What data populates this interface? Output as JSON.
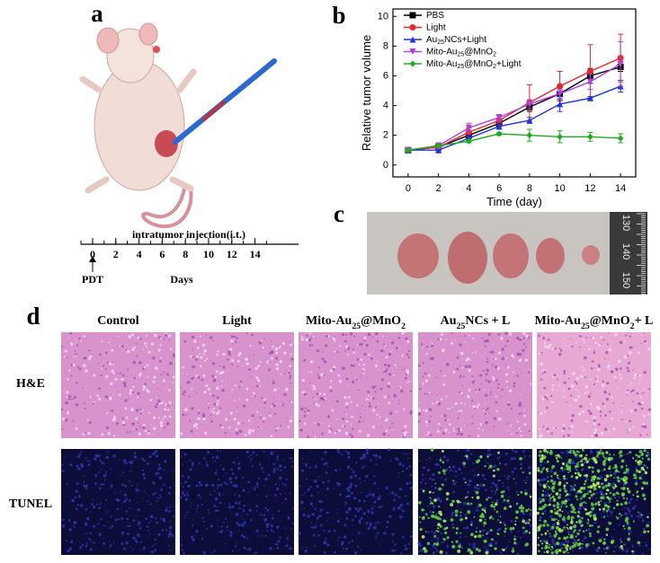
{
  "panel_labels": [
    "a",
    "b",
    "c",
    "d"
  ],
  "panel_a": {
    "annotation": "intratumor injection(i.t.)",
    "timeline_ticks": [
      0,
      2,
      4,
      6,
      8,
      10,
      12,
      14
    ],
    "start_label": "PDT",
    "axis_label": "Days"
  },
  "chart_data": {
    "type": "line",
    "xlabel": "Time (day)",
    "ylabel": "Relative tumor volume",
    "x": [
      0,
      2,
      4,
      6,
      8,
      10,
      12,
      14
    ],
    "xlim": [
      -1,
      15
    ],
    "xticks": [
      0,
      2,
      4,
      6,
      8,
      10,
      12,
      14
    ],
    "ylim": [
      -0.8,
      10.5
    ],
    "yticks": [
      0,
      2,
      4,
      6,
      8,
      10
    ],
    "legend": "upper left",
    "series": [
      {
        "name": "PBS",
        "color": "#000000",
        "marker": "square",
        "values": [
          1.0,
          1.2,
          2.0,
          2.8,
          3.9,
          4.8,
          6.0,
          6.6
        ],
        "errors": [
          0.1,
          0.2,
          0.2,
          0.2,
          0.3,
          0.4,
          0.5,
          0.3
        ]
      },
      {
        "name": "Light",
        "color": "#e8262a",
        "marker": "circle",
        "values": [
          1.0,
          1.2,
          2.2,
          3.0,
          4.2,
          5.3,
          6.3,
          7.2
        ],
        "errors": [
          0.1,
          0.2,
          0.3,
          0.3,
          1.2,
          1.0,
          1.8,
          1.6
        ]
      },
      {
        "name": "Au25NCs+Light",
        "color": "#2233dd",
        "marker": "triangle",
        "values": [
          1.0,
          1.0,
          1.8,
          2.6,
          3.0,
          4.1,
          4.5,
          5.3
        ],
        "errors": [
          0.1,
          0.1,
          0.2,
          0.2,
          0.2,
          0.5,
          0.1,
          0.4
        ]
      },
      {
        "name": "Mito-Au25@MnO2",
        "color": "#b040e0",
        "marker": "triangle-down",
        "values": [
          1.0,
          1.3,
          2.5,
          3.2,
          4.1,
          4.8,
          5.6,
          6.8
        ],
        "errors": [
          0.1,
          0.2,
          0.3,
          0.2,
          0.3,
          0.3,
          0.5,
          1.5
        ]
      },
      {
        "name": "Mito-Au25@MnO2+Light",
        "color": "#22aa22",
        "marker": "diamond",
        "values": [
          1.0,
          1.3,
          1.6,
          2.1,
          2.0,
          1.9,
          1.9,
          1.8
        ],
        "errors": [
          0.1,
          0.1,
          0.1,
          0.1,
          0.4,
          0.4,
          0.3,
          0.3
        ]
      }
    ]
  },
  "panel_c": {
    "ruler_labels": [
      130,
      140,
      150
    ]
  },
  "panel_d": {
    "columns": [
      "Control",
      "Light",
      "Mito-Au25@MnO2",
      "Au25NCs + L",
      "Mito-Au25@MnO2+ L"
    ],
    "rows": [
      "H&E",
      "TUNEL"
    ]
  }
}
